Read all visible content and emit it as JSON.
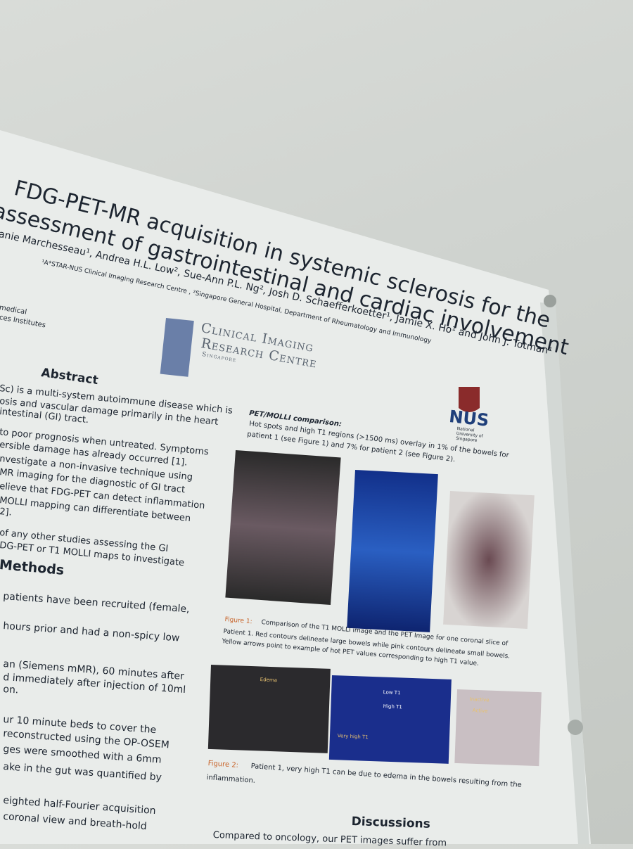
{
  "poster": {
    "title": [
      "FDG-PET-MR acquisition in systemic sclerosis for the",
      "assessment of gastrointestinal and cardiac involvement"
    ],
    "authors": "anie Marchesseau¹, Andrea H.L. Low², Sue-Ann P.L. Ng², Josh D. Schaefferkoetter¹, Jamie X. Ho¹ and John J. Totman¹",
    "affiliations": "¹A*STAR-NUS Clinical Imaging Research Centre , ²Singapore General Hospital, Department of Rheumatology and Immunology",
    "institute": [
      "medical",
      "ces Institutes"
    ],
    "circ_logo": [
      "Clinical Imaging",
      "Research Centre",
      "Singapore"
    ],
    "nus_logo": [
      "NUS",
      "National University of Singapore"
    ],
    "abstract": {
      "heading": "Abstract",
      "lines": [
        "Sc) is a multi-system autoimmune disease which is",
        "osis and vascular damage primarily in the heart",
        "intestinal (GI) tract.",
        "to poor prognosis when untreated. Symptoms",
        "ersible damage has already occurred [1].",
        "nvestigate a non-invasive technique using",
        "MR imaging for the diagnostic of GI tract",
        "elieve that FDG-PET can detect inflammation",
        "MOLLI mapping can differentiate between",
        "2].",
        "of any other studies assessing the GI",
        "DG-PET or T1 MOLLI maps to investigate"
      ]
    },
    "methods": {
      "heading": "Methods",
      "lines": [
        "patients have been recruited (female,",
        "hours prior and had a non-spicy low",
        "an (Siemens mMR), 60 minutes after",
        "d immediately after injection of 10ml",
        "on.",
        "ur 10 minute beds to cover the",
        "reconstructed using the OP-OSEM",
        "ges were smoothed with a 6mm",
        "ake in the gut was quantified by",
        "eighted half-Fourier acquisition",
        "coronal view and breath-hold"
      ]
    },
    "comparison": {
      "heading": "PET/MOLLI comparison:",
      "lines": [
        "Hot spots and high T1 regions (>1500 ms) overlay in 1% of the bowels for",
        "patient 1 (see Figure 1) and 7% for patient 2 (see Figure 2)."
      ]
    },
    "figure1": {
      "label": "Figure 1:",
      "lines": [
        " Comparison of the T1 MOLLI image and the PET Image for one coronal slice of",
        "Patient 1. Red contours delineate large bowels while pink contours delineate small bowels.",
        "Yellow arrows point to example of hot PET values corresponding to high T1 value."
      ]
    },
    "figure2": {
      "annotations": [
        "Edema",
        "Low T1",
        "High T1",
        "Very high T1",
        "Inactive",
        "Active"
      ],
      "label": "Figure 2:",
      "lines": [
        " Patient 1, very high T1 can be due to edema in the bowels resulting from the",
        "inflammation."
      ]
    },
    "discussions": {
      "heading": "Discussions",
      "bullet": "Compared to oncology, our PET images suffer from"
    }
  }
}
